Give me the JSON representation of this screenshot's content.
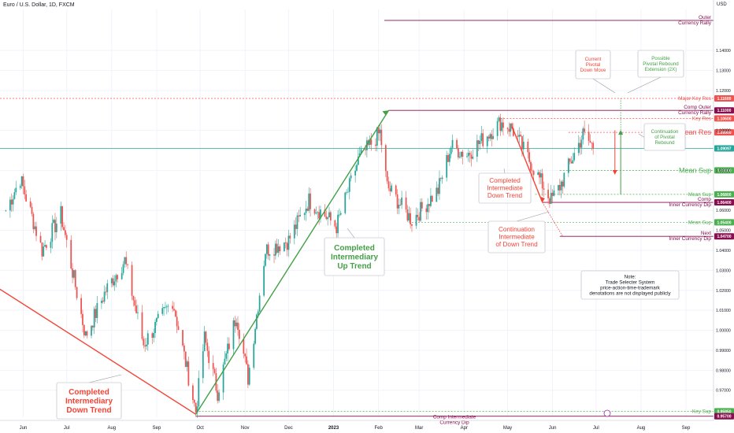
{
  "header": {
    "title": "Euro / U.S. Dollar, 1D, FXCM",
    "currency": "USD"
  },
  "chart_data": {
    "type": "candlestick",
    "title": "Euro / U.S. Dollar, 1D, FXCM",
    "ylim": [
      0.9565,
      1.1605
    ],
    "y_ticks": [
      "1.14000",
      "1.13000",
      "1.12000",
      "1.10000",
      "1.08000",
      "1.06000",
      "1.05000",
      "1.04000",
      "1.03000",
      "1.02000",
      "1.01000",
      "1.00000",
      "0.99000",
      "0.98000",
      "0.97000"
    ],
    "x_labels": [
      "Jun",
      "Jul",
      "Aug",
      "Sep",
      "Oct",
      "Nov",
      "Dec",
      "2023",
      "Feb",
      "Mar",
      "Apr",
      "May",
      "Jun",
      "Jul",
      "Aug",
      "Sep"
    ],
    "candle_path": [
      [
        "2022-05-20",
        1.06
      ],
      [
        "2022-05-30",
        1.076
      ],
      [
        "2022-06-14",
        1.04
      ],
      [
        "2022-06-27",
        1.058
      ],
      [
        "2022-07-14",
        0.997
      ],
      [
        "2022-07-28",
        1.02
      ],
      [
        "2022-08-10",
        1.035
      ],
      [
        "2022-08-23",
        0.993
      ],
      [
        "2022-09-12",
        1.015
      ],
      [
        "2022-09-28",
        0.9595
      ],
      [
        "2022-10-04",
        0.996
      ],
      [
        "2022-10-13",
        0.969
      ],
      [
        "2022-10-26",
        1.008
      ],
      [
        "2022-11-03",
        0.976
      ],
      [
        "2022-11-15",
        1.04
      ],
      [
        "2022-12-01",
        1.045
      ],
      [
        "2022-12-15",
        1.065
      ],
      [
        "2023-01-03",
        1.052
      ],
      [
        "2023-01-18",
        1.085
      ],
      [
        "2023-02-02",
        1.099
      ],
      [
        "2023-02-07",
        1.072
      ],
      [
        "2023-02-24",
        1.055
      ],
      [
        "2023-03-14",
        1.07
      ],
      [
        "2023-03-23",
        1.092
      ],
      [
        "2023-04-03",
        1.088
      ],
      [
        "2023-04-26",
        1.104
      ],
      [
        "2023-05-04",
        1.101
      ],
      [
        "2023-05-31",
        1.065
      ],
      [
        "2023-06-06",
        1.072
      ],
      [
        "2023-06-22",
        1.098
      ],
      [
        "2023-06-30",
        1.091
      ]
    ],
    "level_lines": [
      {
        "label": "Outer Currency Rally",
        "value": 1.155,
        "badge": "",
        "color": "#880e4f"
      },
      {
        "label": "Major Key Res",
        "value": 1.116,
        "badge": "1.11600",
        "color": "#ef5350"
      },
      {
        "label": "Comp Outer Currency Rally",
        "value": 1.11,
        "badge": "1.11000",
        "color": "#880e4f"
      },
      {
        "label": "Key Res",
        "value": 1.106,
        "badge": "1.10600",
        "color": "#ef5350"
      },
      {
        "label": "Mean Res",
        "value": 1.099,
        "badge": "1.09900",
        "color": "#ef5350"
      },
      {
        "label": "",
        "value": 1.091,
        "badge": "1.09097",
        "color": "#26a69a"
      },
      {
        "label": "Mean Sup",
        "value": 1.08,
        "badge": "1.08000",
        "color": "#4caf50"
      },
      {
        "label": "Mean Sup",
        "value": 1.068,
        "badge": "1.06800",
        "color": "#4caf50"
      },
      {
        "label": "Comp Inner Currency Dip",
        "value": 1.064,
        "badge": "1.06400",
        "color": "#880e4f"
      },
      {
        "label": "Mean Sup",
        "value": 1.054,
        "badge": "1.05400",
        "color": "#4caf50"
      },
      {
        "label": "Next Inner Currency Dip",
        "value": 1.047,
        "badge": "1.04700",
        "color": "#880e4f"
      },
      {
        "label": "Key Sup",
        "value": 0.9595,
        "badge": "0.95950",
        "color": "#4caf50"
      },
      {
        "label": "Comp Intermediate Currency Dip",
        "value": 0.957,
        "badge": "0.95700",
        "color": "#880e4f"
      }
    ],
    "annotations": [
      {
        "text": "Completed Intermediary Down Trend",
        "color": "#f44336"
      },
      {
        "text": "Completed Intermediary Up Trend",
        "color": "#43a047"
      },
      {
        "text": "Completed Intermediate Down Trend",
        "color": "#f44336"
      },
      {
        "text": "Continuation Intermediate of Down Trend",
        "color": "#f44336"
      },
      {
        "text": "Current Pivotal Down Move",
        "color": "#f44336"
      },
      {
        "text": "Possible Pivotal Rebound Extension (2X)",
        "color": "#43a047"
      },
      {
        "text": "Continuation of Pivotal Rebound",
        "color": "#43a047"
      },
      {
        "text": "Note: Trade Selecter System price-action-time-trademark denotations are not displayed publicly",
        "color": "#131722"
      }
    ],
    "trend_lines": [
      {
        "from": [
          "2022-05-15",
          1.021
        ],
        "to": [
          "2022-09-28",
          0.958
        ],
        "color": "#f44336"
      },
      {
        "from": [
          "2022-09-28",
          0.958
        ],
        "to": [
          "2023-02-08",
          1.11
        ],
        "color": "#43a047"
      },
      {
        "from": [
          "2023-05-04",
          1.102
        ],
        "to": [
          "2023-05-25",
          1.064
        ],
        "color": "#f44336"
      }
    ],
    "x_range": [
      "2022-05-16",
      "2023-09-20"
    ]
  },
  "ui": {
    "colors": {
      "up": "#26a69a",
      "down": "#ef5350",
      "axis_text": "#131722",
      "grid": "#f0f3fa"
    }
  }
}
